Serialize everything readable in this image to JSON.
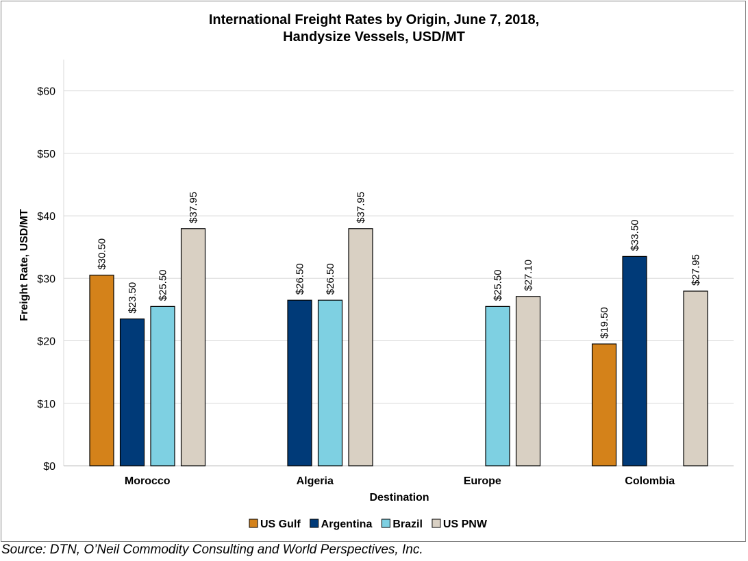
{
  "chart_data": {
    "type": "bar",
    "title_lines": [
      "International Freight Rates by Origin, June 7, 2018,",
      "Handysize Vessels, USD/MT"
    ],
    "xlabel": "Destination",
    "ylabel": "Freight Rate, USD/MT",
    "ylim": [
      0,
      65
    ],
    "yticks": [
      0,
      10,
      20,
      30,
      40,
      50,
      60
    ],
    "ytick_labels": [
      "$0",
      "$10",
      "$20",
      "$30",
      "$40",
      "$50",
      "$60"
    ],
    "categories": [
      "Morocco",
      "Algeria",
      "Europe",
      "Colombia"
    ],
    "series": [
      {
        "name": "US Gulf",
        "color": "#d4821a",
        "values": [
          30.5,
          null,
          null,
          19.5
        ],
        "labels": [
          "$30.50",
          "",
          "",
          "$19.50"
        ]
      },
      {
        "name": "Argentina",
        "color": "#003a78",
        "values": [
          23.5,
          26.5,
          null,
          33.5
        ],
        "labels": [
          "$23.50",
          "$26.50",
          "",
          "$33.50"
        ]
      },
      {
        "name": "Brazil",
        "color": "#7ed0e2",
        "values": [
          25.5,
          26.5,
          25.5,
          null
        ],
        "labels": [
          "$25.50",
          "$26.50",
          "$25.50",
          ""
        ]
      },
      {
        "name": "US PNW",
        "color": "#d9d0c3",
        "values": [
          37.95,
          37.95,
          27.1,
          27.95
        ],
        "labels": [
          "$37.95",
          "$37.95",
          "$27.10",
          "$27.95"
        ]
      }
    ],
    "grid": true,
    "legend_position": "bottom"
  },
  "source": "Source: DTN, O’Neil Commodity Consulting and World Perspectives, Inc."
}
